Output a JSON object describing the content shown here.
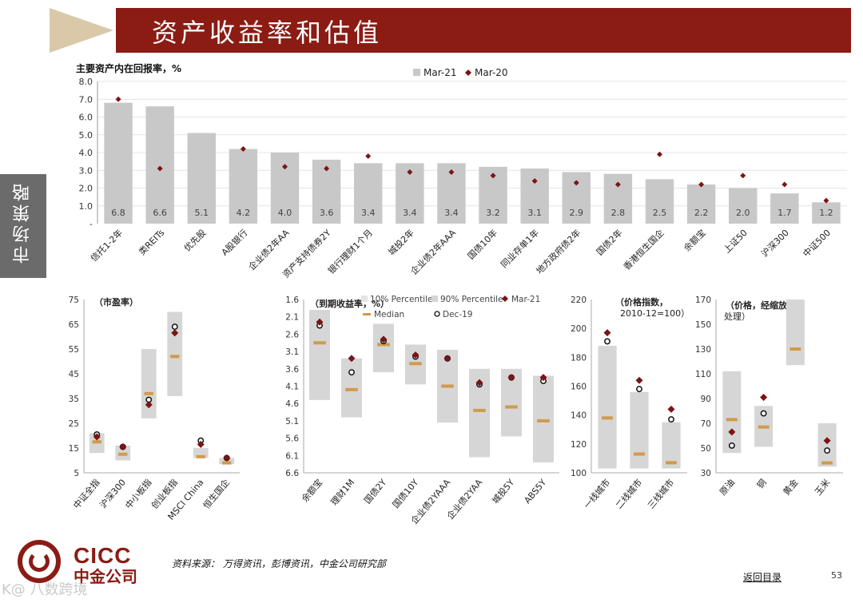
{
  "header": {
    "title": "资产收益率和估值",
    "side_tab": "市场策略"
  },
  "footer": {
    "logo_en": "CICC",
    "logo_cn": "中金公司",
    "source": "资料来源： 万得资讯，彭博资讯，中金公司研究部",
    "back_link": "返回目录",
    "page_number": "53",
    "watermark": "K@ 八数跨境"
  },
  "colors": {
    "brand": "#8a1c14",
    "bar": "#c8c8c8",
    "box": "#d6d6d6",
    "median": "#d19a4a",
    "marker": "#7b1414"
  },
  "chart_data": [
    {
      "type": "bar",
      "title": "主要资产内在回报率，%",
      "legend": [
        "Mar-21",
        "Mar-20"
      ],
      "categories": [
        "信托1-2年",
        "类REITs",
        "优先股",
        "A股银行",
        "企业债2年AA",
        "资产支持债券2Y",
        "银行理财1个月",
        "城投2年",
        "企业债2年AAA",
        "国债10年",
        "同业存单1年",
        "地方政府债2年",
        "国债2年",
        "香港恒生国企",
        "余额宝",
        "上证50",
        "沪深300",
        "中证500"
      ],
      "series": [
        {
          "name": "Mar-21",
          "values": [
            6.8,
            6.6,
            5.1,
            4.2,
            4.0,
            3.6,
            3.4,
            3.4,
            3.4,
            3.2,
            3.1,
            2.9,
            2.8,
            2.5,
            2.2,
            2.0,
            1.7,
            1.2
          ]
        },
        {
          "name": "Mar-20",
          "values": [
            7.0,
            3.1,
            null,
            4.2,
            3.2,
            3.1,
            3.8,
            2.9,
            2.9,
            2.7,
            2.4,
            2.3,
            2.2,
            3.9,
            2.2,
            2.7,
            2.2,
            1.3
          ]
        }
      ],
      "value_labels": [
        "6.8",
        "6.6",
        "5.1",
        "4.2",
        "4.0",
        "3.6",
        "3.4",
        "3.4",
        "3.4",
        "3.2",
        "3.1",
        "2.9",
        "2.8",
        "2.5",
        "2.2",
        "2.0",
        "1.7",
        "1.2"
      ],
      "yticks": [
        "8.0",
        "7.0",
        "6.0",
        "5.0",
        "4.0",
        "3.0",
        "2.0",
        "1.0",
        "-"
      ],
      "ylim": [
        0,
        8
      ]
    },
    {
      "type": "box",
      "title": "（市盈率）",
      "categories": [
        "中证全指",
        "沪深300",
        "中小板指",
        "创业板指",
        "MSCI China",
        "恒生国企"
      ],
      "p10": [
        13,
        10,
        27,
        36,
        11,
        8.5
      ],
      "p90": [
        21,
        16,
        55,
        70,
        15,
        11
      ],
      "median": [
        17.5,
        12.5,
        37,
        52,
        11.5,
        9
      ],
      "mar21": [
        19.5,
        15.5,
        32.5,
        61.5,
        16.5,
        11
      ],
      "dec19": [
        20.5,
        15.5,
        34.5,
        64,
        18,
        11
      ],
      "yticks": [
        "75",
        "65",
        "55",
        "45",
        "35",
        "25",
        "15",
        "5"
      ],
      "ylim": [
        5,
        75
      ],
      "inverted": false
    },
    {
      "type": "box",
      "title": "（到期收益率，%）",
      "legend": [
        "10% Percentile",
        "90% Percentile",
        "Mar-21",
        "Median",
        "Dec-19"
      ],
      "categories": [
        "余额宝",
        "理财1M",
        "国债2Y",
        "国债10Y",
        "企业债2YAAA",
        "企业债2YAA",
        "城投5Y",
        "ABS5Y"
      ],
      "p10": [
        1.9,
        3.3,
        2.3,
        2.9,
        3.05,
        3.6,
        3.6,
        3.8
      ],
      "p90": [
        4.5,
        5.0,
        3.7,
        4.05,
        5.15,
        6.15,
        5.55,
        6.3
      ],
      "median": [
        2.85,
        4.2,
        2.9,
        3.45,
        4.1,
        4.8,
        4.7,
        5.1
      ],
      "mar21": [
        2.25,
        3.3,
        2.75,
        3.2,
        3.3,
        4.0,
        3.85,
        3.85
      ],
      "dec19": [
        2.35,
        3.7,
        2.8,
        3.25,
        3.3,
        4.05,
        3.85,
        3.95
      ],
      "yticks": [
        "1.6",
        "2.1",
        "2.6",
        "3.1",
        "3.6",
        "4.1",
        "4.6",
        "5.1",
        "5.6",
        "6.1",
        "6.6"
      ],
      "ylim": [
        1.6,
        6.6
      ],
      "inverted": true
    },
    {
      "type": "box",
      "title": "（价格指数，",
      "subtitle": "2010-12=100）",
      "categories": [
        "一线城市",
        "二线城市",
        "三线城市"
      ],
      "p10": [
        103,
        103,
        103
      ],
      "p90": [
        188,
        156,
        135
      ],
      "median": [
        138,
        113,
        107
      ],
      "mar21": [
        197,
        164,
        144
      ],
      "dec19": [
        191,
        158,
        137
      ],
      "yticks": [
        "220",
        "200",
        "180",
        "160",
        "140",
        "120",
        "100"
      ],
      "ylim": [
        100,
        220
      ],
      "inverted": false
    },
    {
      "type": "box",
      "title": "（价格，经缩放",
      "subtitle": "处理）",
      "categories": [
        "原油",
        "铜",
        "黄金",
        "玉米"
      ],
      "p10": [
        46,
        51,
        117,
        35
      ],
      "p90": [
        112,
        84,
        170,
        70
      ],
      "median": [
        73,
        67,
        130,
        38
      ],
      "mar21": [
        63,
        91,
        null,
        56
      ],
      "dec19": [
        52,
        78,
        null,
        48
      ],
      "yticks": [
        "170",
        "150",
        "130",
        "110",
        "90",
        "70",
        "50",
        "30"
      ],
      "ylim": [
        30,
        170
      ],
      "inverted": false
    }
  ]
}
